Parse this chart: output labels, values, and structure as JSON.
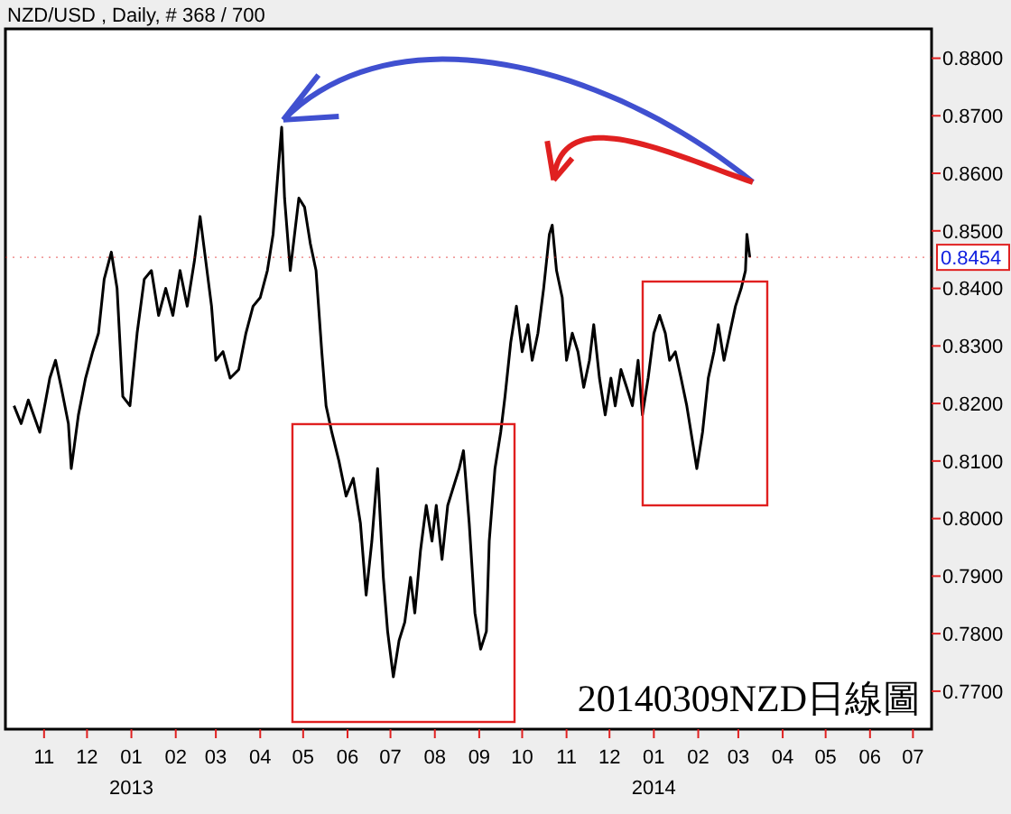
{
  "chart_data": {
    "type": "line",
    "title": "NZD/USD , Daily, # 368 / 700",
    "annotations": [
      "20140309NZD日線圖"
    ],
    "ref_lines": [
      {
        "axis": "y",
        "value": 0.8454,
        "label": "0.8454",
        "color": "#e02020"
      }
    ],
    "xlim": [
      "2012-10-05",
      "2014-07-14"
    ],
    "xticks": [
      {
        "value": "2012-11-01",
        "label": "11"
      },
      {
        "value": "2012-12-01",
        "label": "12"
      },
      {
        "value": "2013-01-01",
        "label": "01\n2013"
      },
      {
        "value": "2013-02-01",
        "label": "02"
      },
      {
        "value": "2013-03-01",
        "label": "03"
      },
      {
        "value": "2013-04-01",
        "label": "04"
      },
      {
        "value": "2013-05-01",
        "label": "05"
      },
      {
        "value": "2013-06-01",
        "label": "06"
      },
      {
        "value": "2013-07-01",
        "label": "07"
      },
      {
        "value": "2013-08-01",
        "label": "08"
      },
      {
        "value": "2013-09-01",
        "label": "09"
      },
      {
        "value": "2013-10-01",
        "label": "10"
      },
      {
        "value": "2013-11-01",
        "label": "11"
      },
      {
        "value": "2013-12-01",
        "label": "12"
      },
      {
        "value": "2014-01-01",
        "label": "01\n2014"
      },
      {
        "value": "2014-02-01",
        "label": "02"
      },
      {
        "value": "2014-03-01",
        "label": "03"
      },
      {
        "value": "2014-04-01",
        "label": "04"
      },
      {
        "value": "2014-05-01",
        "label": "05"
      },
      {
        "value": "2014-06-01",
        "label": "06"
      },
      {
        "value": "2014-07-01",
        "label": "07"
      }
    ],
    "ylim": [
      0.7634,
      0.8851
    ],
    "yticks": [
      {
        "value": 0.77,
        "label": "0.7700"
      },
      {
        "value": 0.78,
        "label": "0.7800"
      },
      {
        "value": 0.79,
        "label": "0.7900"
      },
      {
        "value": 0.8,
        "label": "0.8000"
      },
      {
        "value": 0.81,
        "label": "0.8100"
      },
      {
        "value": 0.82,
        "label": "0.8200"
      },
      {
        "value": 0.83,
        "label": "0.8300"
      },
      {
        "value": 0.84,
        "label": "0.8400"
      },
      {
        "value": 0.85,
        "label": "0.8500"
      },
      {
        "value": 0.86,
        "label": "0.8600"
      },
      {
        "value": 0.87,
        "label": "0.8700"
      },
      {
        "value": 0.88,
        "label": "0.8800"
      }
    ],
    "grid": false,
    "series": [
      {
        "color": "#000000",
        "x": [
          "2012-10-11",
          "2012-10-16",
          "2012-10-21",
          "2012-10-29",
          "2012-11-05",
          "2012-11-09",
          "2012-11-13",
          "2012-11-18",
          "2012-11-20",
          "2012-11-25",
          "2012-11-30",
          "2012-12-05",
          "2012-12-09",
          "2012-12-13",
          "2012-12-18",
          "2012-12-22",
          "2012-12-26",
          "2012-12-31",
          "2013-01-05",
          "2013-01-10",
          "2013-01-15",
          "2013-01-20",
          "2013-01-25",
          "2013-01-30",
          "2013-02-04",
          "2013-02-09",
          "2013-02-14",
          "2013-02-18",
          "2013-02-22",
          "2013-02-26",
          "2013-03-01",
          "2013-03-06",
          "2013-03-11",
          "2013-03-17",
          "2013-03-22",
          "2013-03-27",
          "2013-04-01",
          "2013-04-06",
          "2013-04-10",
          "2013-04-13",
          "2013-04-16",
          "2013-04-18",
          "2013-04-22",
          "2013-04-25",
          "2013-04-28",
          "2013-05-02",
          "2013-05-06",
          "2013-05-10",
          "2013-05-14",
          "2013-05-17",
          "2013-05-21",
          "2013-05-26",
          "2013-05-31",
          "2013-06-05",
          "2013-06-10",
          "2013-06-14",
          "2013-06-18",
          "2013-06-22",
          "2013-06-26",
          "2013-06-29",
          "2013-07-03",
          "2013-07-07",
          "2013-07-11",
          "2013-07-15",
          "2013-07-18",
          "2013-07-22",
          "2013-07-26",
          "2013-07-30",
          "2013-08-02",
          "2013-08-06",
          "2013-08-10",
          "2013-08-14",
          "2013-08-18",
          "2013-08-21",
          "2013-08-25",
          "2013-08-29",
          "2013-09-02",
          "2013-09-06",
          "2013-09-08",
          "2013-09-12",
          "2013-09-16",
          "2013-09-19",
          "2013-09-23",
          "2013-09-27",
          "2013-10-01",
          "2013-10-05",
          "2013-10-08",
          "2013-10-12",
          "2013-10-16",
          "2013-10-20",
          "2013-10-22",
          "2013-10-25",
          "2013-10-29",
          "2013-11-01",
          "2013-11-05",
          "2013-11-09",
          "2013-11-13",
          "2013-11-17",
          "2013-11-20",
          "2013-11-24",
          "2013-11-28",
          "2013-12-02",
          "2013-12-05",
          "2013-12-09",
          "2013-12-13",
          "2013-12-17",
          "2013-12-21",
          "2013-12-24",
          "2013-12-28",
          "2014-01-01",
          "2014-01-05",
          "2014-01-09",
          "2014-01-12",
          "2014-01-16",
          "2014-01-20",
          "2014-01-24",
          "2014-01-28",
          "2014-01-31",
          "2014-02-04",
          "2014-02-08",
          "2014-02-12",
          "2014-02-15",
          "2014-02-19",
          "2014-02-23",
          "2014-02-27",
          "2014-03-03",
          "2014-03-06",
          "2014-03-07",
          "2014-03-09"
        ],
        "values": [
          0.8196,
          0.8165,
          0.8206,
          0.815,
          0.8244,
          0.8275,
          0.8228,
          0.8165,
          0.8087,
          0.818,
          0.8244,
          0.829,
          0.8322,
          0.8416,
          0.8463,
          0.84,
          0.8212,
          0.8196,
          0.8322,
          0.8416,
          0.8431,
          0.8353,
          0.84,
          0.8353,
          0.8431,
          0.8369,
          0.8447,
          0.8525,
          0.8447,
          0.8369,
          0.8275,
          0.829,
          0.8244,
          0.8259,
          0.8322,
          0.8369,
          0.8384,
          0.8431,
          0.8494,
          0.8588,
          0.868,
          0.8557,
          0.8431,
          0.8494,
          0.8557,
          0.8541,
          0.8478,
          0.8431,
          0.829,
          0.8196,
          0.815,
          0.81,
          0.8039,
          0.807,
          0.7992,
          0.7867,
          0.7961,
          0.8087,
          0.7898,
          0.7804,
          0.7725,
          0.7788,
          0.782,
          0.7898,
          0.7836,
          0.7945,
          0.8023,
          0.7961,
          0.8023,
          0.7929,
          0.8023,
          0.8055,
          0.8087,
          0.8118,
          0.7992,
          0.7836,
          0.7773,
          0.7804,
          0.7961,
          0.8087,
          0.815,
          0.8212,
          0.8306,
          0.8369,
          0.829,
          0.8337,
          0.8275,
          0.8322,
          0.84,
          0.8494,
          0.851,
          0.8431,
          0.8384,
          0.8275,
          0.8322,
          0.829,
          0.8228,
          0.8275,
          0.8337,
          0.8244,
          0.818,
          0.8244,
          0.8196,
          0.8259,
          0.8228,
          0.8196,
          0.8275,
          0.818,
          0.8244,
          0.8322,
          0.8353,
          0.8322,
          0.8275,
          0.829,
          0.8244,
          0.8196,
          0.8134,
          0.8087,
          0.815,
          0.8244,
          0.829,
          0.8337,
          0.8275,
          0.8322,
          0.8369,
          0.84,
          0.8431,
          0.8494,
          0.8454
        ]
      }
    ]
  }
}
